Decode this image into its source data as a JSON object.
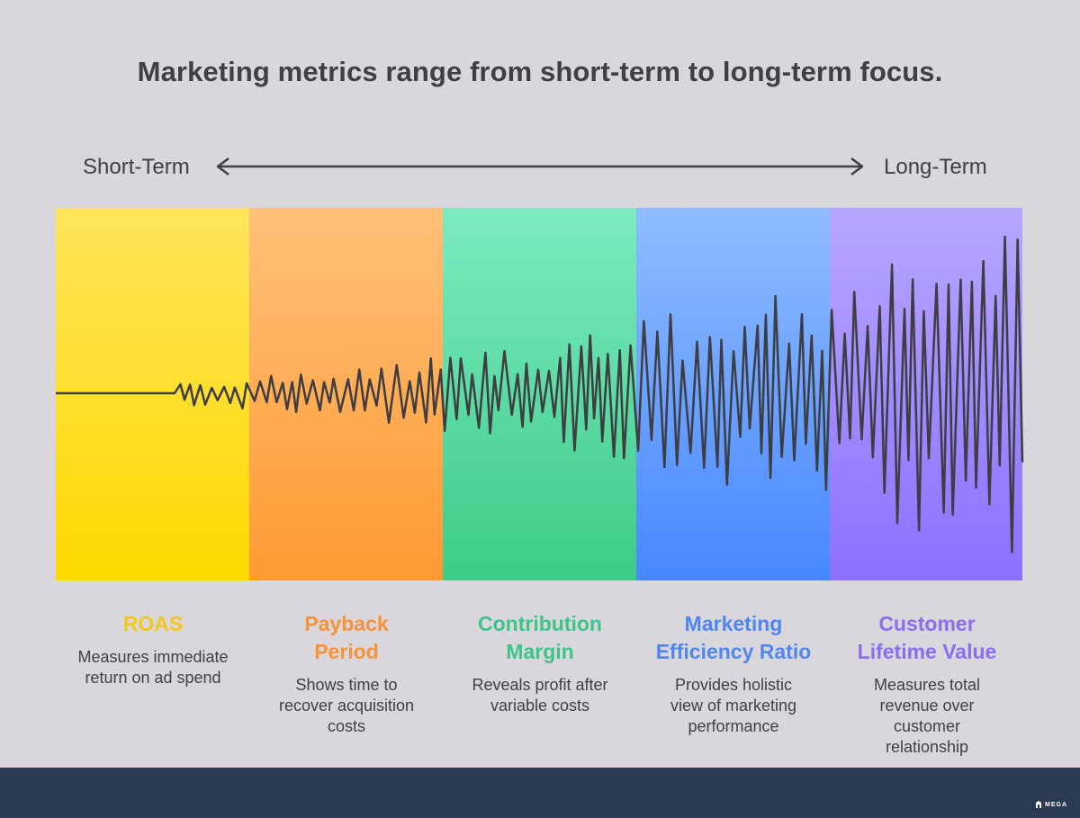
{
  "title": "Marketing metrics range from short-term to long-term focus.",
  "axis": {
    "left": "Short-Term",
    "right": "Long-Term"
  },
  "metrics": [
    {
      "title": "ROAS",
      "desc": "Measures immediate return on ad spend",
      "color": "#f2c81a"
    },
    {
      "title": "Payback Period",
      "desc": "Shows time to recover acquisition costs",
      "color": "#f5923a"
    },
    {
      "title": "Contribution Margin",
      "desc": "Reveals profit after variable costs",
      "color": "#3cc48a"
    },
    {
      "title": "Marketing Efficiency Ratio",
      "desc": "Provides holistic view of marketing performance",
      "color": "#4f86f0"
    },
    {
      "title": "Customer Lifetime Value",
      "desc": "Measures total revenue over customer relationship",
      "color": "#8b6ef0"
    }
  ],
  "brand": "MEGA",
  "colors": {
    "background": "#d9d7db",
    "footer": "#2b3a51",
    "text": "#3f3f46"
  }
}
